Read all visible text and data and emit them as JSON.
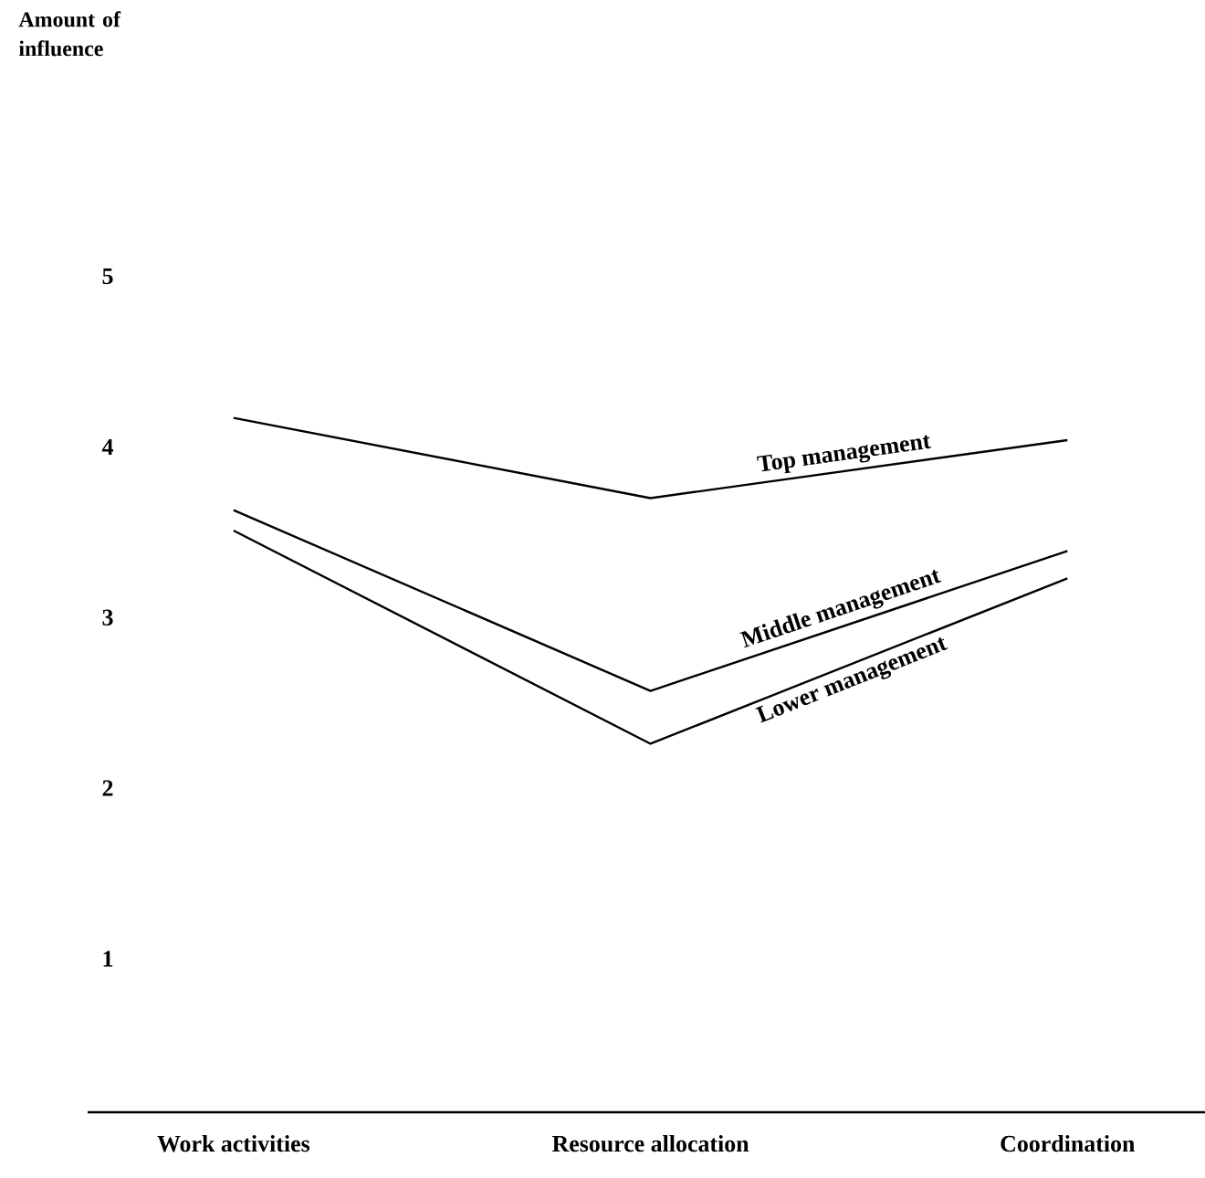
{
  "chart_data": {
    "type": "line",
    "annotations": [
      "Amount of influence"
    ],
    "categories": [
      "Work activities",
      "Resource allocation",
      "Coordination"
    ],
    "series": [
      {
        "name": "Top management",
        "color": "#000000",
        "values": [
          4.17,
          3.7,
          4.04
        ]
      },
      {
        "name": "Middle management",
        "color": "#000000",
        "values": [
          3.63,
          2.57,
          3.39
        ]
      },
      {
        "name": "Lower management",
        "color": "#000000",
        "values": [
          3.51,
          2.26,
          3.23
        ]
      }
    ],
    "ylim": [
      0.1,
      5
    ],
    "yticks": [
      1,
      2,
      3,
      4,
      5
    ],
    "grid": false,
    "legend": false,
    "marker": "none",
    "line_style": "solid"
  }
}
